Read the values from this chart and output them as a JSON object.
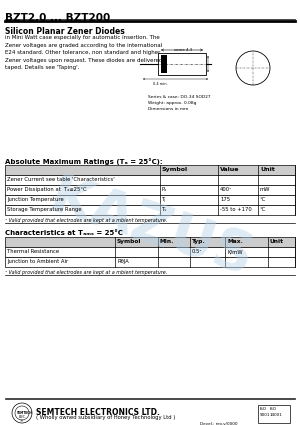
{
  "title": "BZT2.0 ... BZT200",
  "subtitle": "Silicon Planar Zener Diodes",
  "description": "in Mini Watt case especially for automatic insertion. The\nZener voltages are graded according to the international\nE24 standard. Other tolerance, non standard and higher\nZener voltages upon request. These diodes are delivered\ntaped. Details see 'Taping'.",
  "series_label": "Series & case: DO-34 SOD27",
  "weight_label": "Weight: approx. 0.08g\nDimensions in mm",
  "abs_max_title": "Absolute Maximum Ratings (Tₐ = 25°C):",
  "abs_max_headers": [
    "Symbol",
    "Value",
    "Unit"
  ],
  "abs_max_rows": [
    [
      "Zener Current see table 'Characteristics'",
      "",
      "",
      ""
    ],
    [
      "Power Dissipation at  Tₐ≤25°C",
      "Pₐ",
      "400¹",
      "mW"
    ],
    [
      "Junction Temperature",
      "Tⱼ",
      "175",
      "°C"
    ],
    [
      "Storage Temperature Range",
      "Tₛ",
      "-55 to +170",
      "°C"
    ]
  ],
  "abs_max_footnote": "¹ Valid provided that electrodes are kept at a mbient temperature.",
  "char_title": "Characteristics at Tₐₘₓ = 25°C",
  "char_headers": [
    "Symbol",
    "Min.",
    "Typ.",
    "Max.",
    "Unit"
  ],
  "char_rows": [
    [
      "Thermal Resistance",
      "",
      "",
      "0.5¹",
      "K/mW"
    ],
    [
      "Junction to Ambient Air",
      "RθJA",
      "",
      "",
      ""
    ]
  ],
  "char_footnote": "¹ Valid provided that electrodes are kept at a mbient temperature.",
  "footer_main": "SEMTECH ELECTRONICS LTD.",
  "footer_sub": "( Wholly owned subsidiary of Honey Technology Ltd )",
  "footer_right": "Devel.: rev.v/0000",
  "bg_color": "#ffffff",
  "watermark_color": "#b8d4e8"
}
